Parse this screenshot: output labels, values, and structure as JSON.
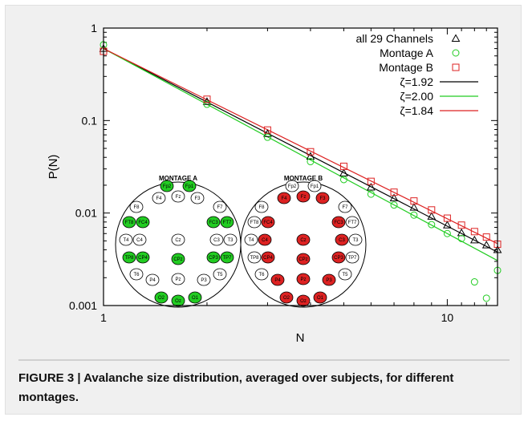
{
  "caption": {
    "label": "FIGURE 3 | ",
    "text": "Avalanche size distribution, averaged over subjects, for different montages."
  },
  "chart_data": {
    "type": "scatter",
    "xscale": "log",
    "yscale": "log",
    "xlabel": "N",
    "ylabel": "P(N)",
    "xlim": [
      1,
      14
    ],
    "ylim": [
      0.001,
      1
    ],
    "x_ticks": [
      1,
      10
    ],
    "x_tick_labels": [
      "1",
      "10"
    ],
    "y_ticks": [
      0.001,
      0.01,
      0.1,
      1
    ],
    "y_tick_labels": [
      "0.001",
      "0.01",
      "0.1",
      "1"
    ],
    "grid": false,
    "legend_position": "top-right",
    "series": [
      {
        "name": "all 29 Channels",
        "marker": "triangle",
        "color": "#000000",
        "x": [
          1,
          2,
          3,
          4,
          5,
          6,
          7,
          8,
          9,
          10,
          11,
          12,
          13,
          14
        ],
        "y": [
          0.6,
          0.16,
          0.072,
          0.041,
          0.027,
          0.019,
          0.0145,
          0.0115,
          0.0092,
          0.0074,
          0.0061,
          0.0051,
          0.0045,
          0.004
        ]
      },
      {
        "name": "Montage A",
        "marker": "circle",
        "color": "#22cc22",
        "x": [
          1,
          2,
          3,
          4,
          5,
          6,
          7,
          8,
          9,
          10,
          11,
          12,
          13,
          14
        ],
        "y": [
          0.66,
          0.15,
          0.066,
          0.036,
          0.023,
          0.016,
          0.0122,
          0.0095,
          0.0075,
          0.006,
          0.0053,
          0.0018,
          0.0012,
          0.0024
        ]
      },
      {
        "name": "Montage B",
        "marker": "square",
        "color": "#dd2222",
        "x": [
          1,
          2,
          3,
          4,
          5,
          6,
          7,
          8,
          9,
          10,
          11,
          12,
          13,
          14
        ],
        "y": [
          0.56,
          0.17,
          0.079,
          0.046,
          0.032,
          0.022,
          0.0168,
          0.0135,
          0.0108,
          0.0088,
          0.0074,
          0.0063,
          0.0055,
          0.0046
        ]
      }
    ],
    "fits": [
      {
        "name": "ζ=1.92",
        "color": "#000000",
        "exponent": 1.92,
        "prefactor": 0.6
      },
      {
        "name": "ζ=2.00",
        "color": "#22cc22",
        "exponent": 2.0,
        "prefactor": 0.6
      },
      {
        "name": "ζ=1.84",
        "color": "#dd2222",
        "exponent": 1.84,
        "prefactor": 0.6
      }
    ],
    "insets": [
      {
        "title": "MONTAGE A",
        "fill": "#22cc22",
        "electrodes": [
          {
            "label": "Fp2",
            "active": true
          },
          {
            "label": "Fp1",
            "active": true
          },
          {
            "label": "F4",
            "active": false
          },
          {
            "label": "Fz",
            "active": false
          },
          {
            "label": "F3",
            "active": false
          },
          {
            "label": "F8",
            "active": false
          },
          {
            "label": "F7",
            "active": false
          },
          {
            "label": "FC4",
            "active": true
          },
          {
            "label": "FC3",
            "active": true
          },
          {
            "label": "FT8",
            "active": true
          },
          {
            "label": "FT7",
            "active": true
          },
          {
            "label": "T4",
            "active": false
          },
          {
            "label": "C4",
            "active": false
          },
          {
            "label": "Cz",
            "active": false
          },
          {
            "label": "C3",
            "active": false
          },
          {
            "label": "T3",
            "active": false
          },
          {
            "label": "TP8",
            "active": true
          },
          {
            "label": "CP4",
            "active": true
          },
          {
            "label": "CPz",
            "active": true
          },
          {
            "label": "CP3",
            "active": true
          },
          {
            "label": "TP7",
            "active": true
          },
          {
            "label": "T6",
            "active": false
          },
          {
            "label": "T5",
            "active": false
          },
          {
            "label": "P4",
            "active": false
          },
          {
            "label": "Pz",
            "active": false
          },
          {
            "label": "P3",
            "active": false
          },
          {
            "label": "O2",
            "active": true
          },
          {
            "label": "Oz",
            "active": true
          },
          {
            "label": "O1",
            "active": true
          }
        ]
      },
      {
        "title": "MONTAGE B",
        "fill": "#dd2222",
        "electrodes": [
          {
            "label": "Fp2",
            "active": false
          },
          {
            "label": "Fp1",
            "active": false
          },
          {
            "label": "F4",
            "active": true
          },
          {
            "label": "Fz",
            "active": true
          },
          {
            "label": "F3",
            "active": true
          },
          {
            "label": "F8",
            "active": false
          },
          {
            "label": "F7",
            "active": false
          },
          {
            "label": "FC4",
            "active": true
          },
          {
            "label": "FC3",
            "active": true
          },
          {
            "label": "FT8",
            "active": false
          },
          {
            "label": "FT7",
            "active": false
          },
          {
            "label": "T4",
            "active": false
          },
          {
            "label": "C4",
            "active": true
          },
          {
            "label": "Cz",
            "active": true
          },
          {
            "label": "C3",
            "active": true
          },
          {
            "label": "T3",
            "active": false
          },
          {
            "label": "TP8",
            "active": false
          },
          {
            "label": "CP4",
            "active": true
          },
          {
            "label": "CPz",
            "active": true
          },
          {
            "label": "CP3",
            "active": true
          },
          {
            "label": "TP7",
            "active": false
          },
          {
            "label": "T6",
            "active": false
          },
          {
            "label": "T5",
            "active": false
          },
          {
            "label": "P4",
            "active": true
          },
          {
            "label": "Pz",
            "active": true
          },
          {
            "label": "P3",
            "active": true
          },
          {
            "label": "O2",
            "active": true
          },
          {
            "label": "Oz",
            "active": true
          },
          {
            "label": "O1",
            "active": true
          }
        ]
      }
    ]
  }
}
